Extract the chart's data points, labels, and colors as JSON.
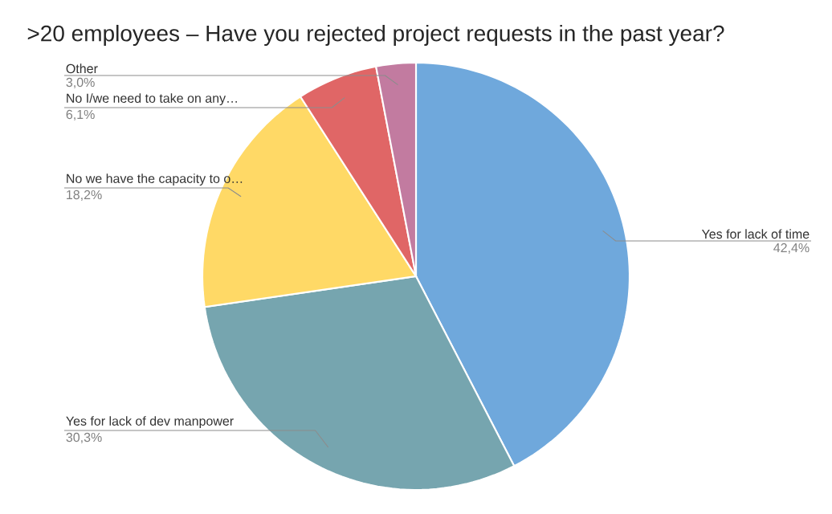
{
  "chart_data": {
    "type": "pie",
    "title": ">20 employees – Have you rejected project requests in the past year?",
    "categories": [
      "Yes for lack of time",
      "Yes for lack of dev manpower",
      "No we have the capacity to o…",
      "No I/we need to take on any…",
      "Other"
    ],
    "values": [
      42.4,
      30.3,
      18.2,
      6.1,
      3.0
    ],
    "value_labels": [
      "42,4%",
      "30,3%",
      "18,2%",
      "6,1%",
      "3,0%"
    ],
    "colors": [
      "#6fa8dc",
      "#76a5af",
      "#ffd966",
      "#e06666",
      "#c27ba0"
    ]
  }
}
